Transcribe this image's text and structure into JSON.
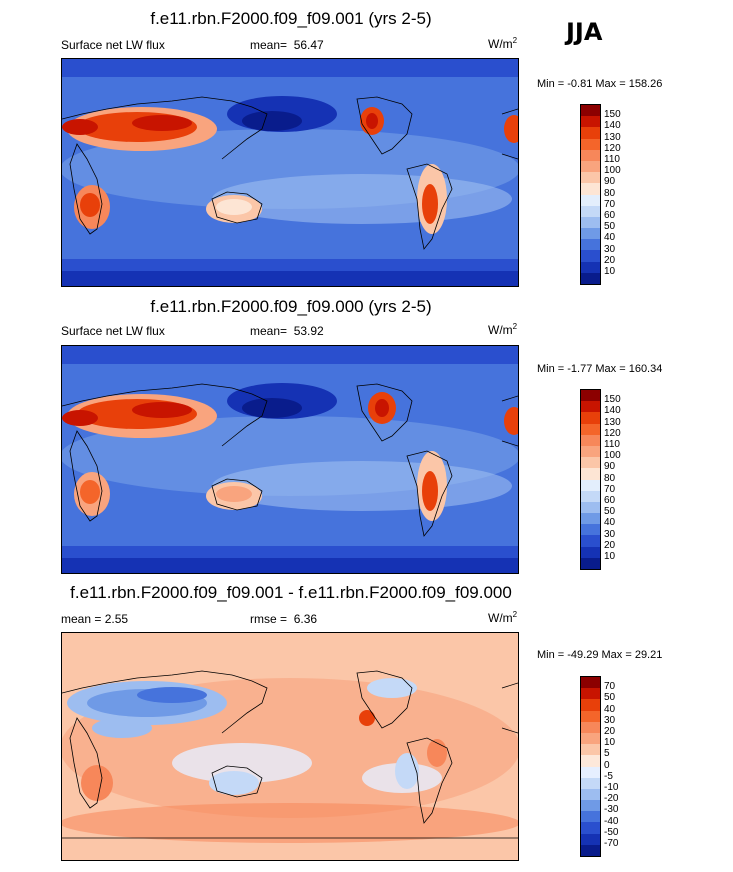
{
  "season_label": "JJA",
  "panels": [
    {
      "title": "f.e11.rbn.F2000.f09_f09.001 (yrs 2-5)",
      "left_label": "Surface net LW flux",
      "center_prefix": "mean=",
      "center_value": "56.47",
      "right_unit": "W/m",
      "right_unit_sup": "2",
      "minmax_text": "Min =  -0.81 Max = 158.26",
      "colorbar": {
        "labels": [
          "150",
          "140",
          "130",
          "120",
          "110",
          "100",
          "90",
          "80",
          "70",
          "60",
          "50",
          "40",
          "30",
          "20",
          "10"
        ],
        "colors": [
          "#8c0000",
          "#c81400",
          "#e8400a",
          "#f4652a",
          "#f7875a",
          "#f9a47e",
          "#fbc6a8",
          "#fde5d4",
          "#e3eefc",
          "#c4d9f7",
          "#9dbdf0",
          "#6f9ae6",
          "#4673dc",
          "#2a4fce",
          "#1532b4",
          "#091c8c"
        ]
      }
    },
    {
      "title": "f.e11.rbn.F2000.f09_f09.000 (yrs 2-5)",
      "left_label": "Surface net LW flux",
      "center_prefix": "mean=",
      "center_value": "53.92",
      "right_unit": "W/m",
      "right_unit_sup": "2",
      "minmax_text": "Min =  -1.77 Max = 160.34",
      "colorbar": {
        "labels": [
          "150",
          "140",
          "130",
          "120",
          "110",
          "100",
          "90",
          "80",
          "70",
          "60",
          "50",
          "40",
          "30",
          "20",
          "10"
        ],
        "colors": [
          "#8c0000",
          "#c81400",
          "#e8400a",
          "#f4652a",
          "#f7875a",
          "#f9a47e",
          "#fbc6a8",
          "#fde5d4",
          "#e3eefc",
          "#c4d9f7",
          "#9dbdf0",
          "#6f9ae6",
          "#4673dc",
          "#2a4fce",
          "#1532b4",
          "#091c8c"
        ]
      }
    },
    {
      "title": "f.e11.rbn.F2000.f09_f09.001 - f.e11.rbn.F2000.f09_f09.000",
      "left_label": "mean =   2.55",
      "center_prefix": "rmse =",
      "center_value": "6.36",
      "right_unit": "W/m",
      "right_unit_sup": "2",
      "minmax_text": "Min = -49.29 Max =  29.21",
      "colorbar": {
        "labels": [
          "70",
          "50",
          "40",
          "30",
          "20",
          "10",
          "5",
          "0",
          "-5",
          "-10",
          "-20",
          "-30",
          "-40",
          "-50",
          "-70"
        ],
        "colors": [
          "#8c0000",
          "#c81400",
          "#e8400a",
          "#f4652a",
          "#f7875a",
          "#f9a47e",
          "#fbc6a8",
          "#fde8da",
          "#e6efff",
          "#c4d9f7",
          "#9dbdf0",
          "#6f9ae6",
          "#4673dc",
          "#2a4fce",
          "#1532b4",
          "#091c8c"
        ]
      }
    }
  ],
  "chart_data": [
    {
      "type": "heatmap",
      "title": "f.e11.rbn.F2000.f09_f09.001 (yrs 2-5)",
      "variable": "Surface net LW flux",
      "units": "W/m2",
      "mean": 56.47,
      "min": -0.81,
      "max": 158.26,
      "levels": [
        10,
        20,
        30,
        40,
        50,
        60,
        70,
        80,
        90,
        100,
        110,
        120,
        130,
        140,
        150
      ]
    },
    {
      "type": "heatmap",
      "title": "f.e11.rbn.F2000.f09_f09.000 (yrs 2-5)",
      "variable": "Surface net LW flux",
      "units": "W/m2",
      "mean": 53.92,
      "min": -1.77,
      "max": 160.34,
      "levels": [
        10,
        20,
        30,
        40,
        50,
        60,
        70,
        80,
        90,
        100,
        110,
        120,
        130,
        140,
        150
      ]
    },
    {
      "type": "heatmap",
      "title": "f.e11.rbn.F2000.f09_f09.001 - f.e11.rbn.F2000.f09_f09.000",
      "units": "W/m2",
      "mean": 2.55,
      "rmse": 6.36,
      "min": -49.29,
      "max": 29.21,
      "levels": [
        -70,
        -50,
        -40,
        -30,
        -20,
        -10,
        -5,
        0,
        5,
        10,
        20,
        30,
        40,
        50,
        70
      ]
    }
  ]
}
